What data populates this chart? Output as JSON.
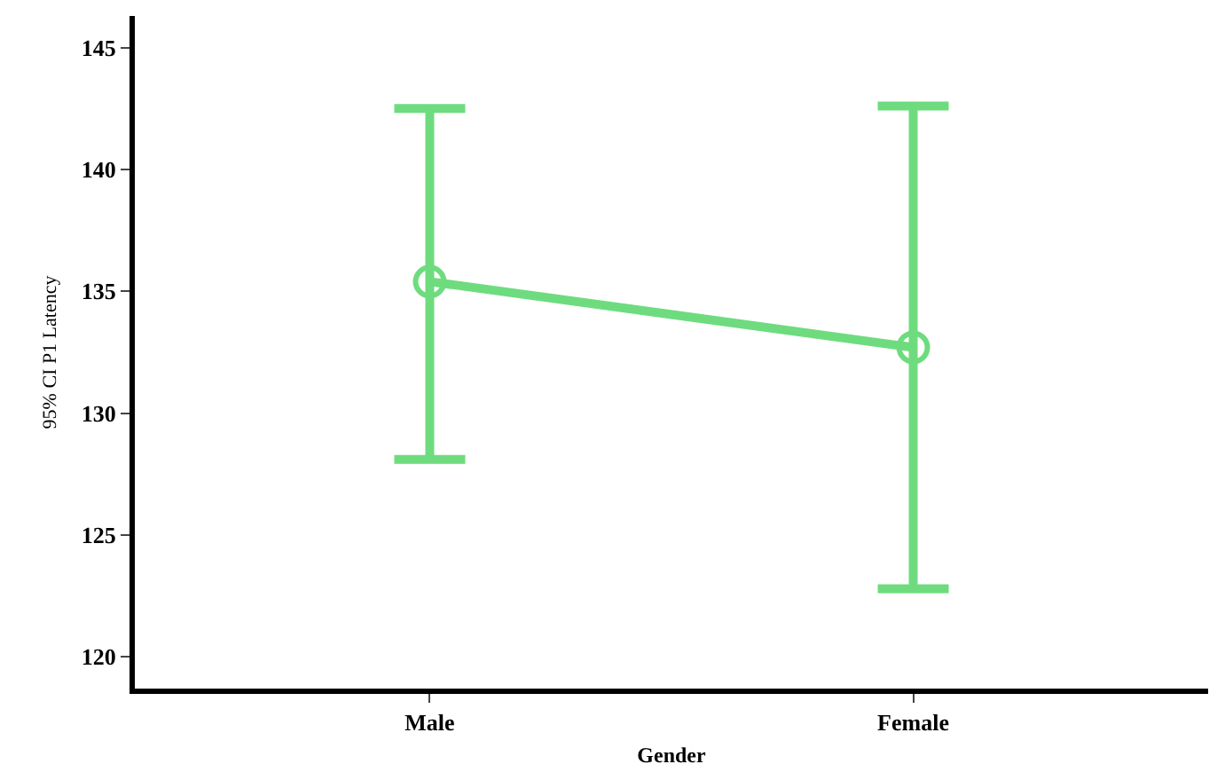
{
  "chart_data": {
    "type": "line",
    "xlabel": "Gender",
    "ylabel": "95% CI P1 Latency",
    "categories": [
      "Male",
      "Female"
    ],
    "color": "#6edc7e",
    "values": [
      135.4,
      132.7
    ],
    "errors": [
      [
        128.1,
        142.5
      ],
      [
        122.8,
        142.6
      ]
    ],
    "ylim": [
      118.7,
      146.3
    ],
    "yticks": [
      120,
      125,
      130,
      135,
      140,
      145
    ],
    "marker": "circle",
    "line_style": "solid"
  }
}
